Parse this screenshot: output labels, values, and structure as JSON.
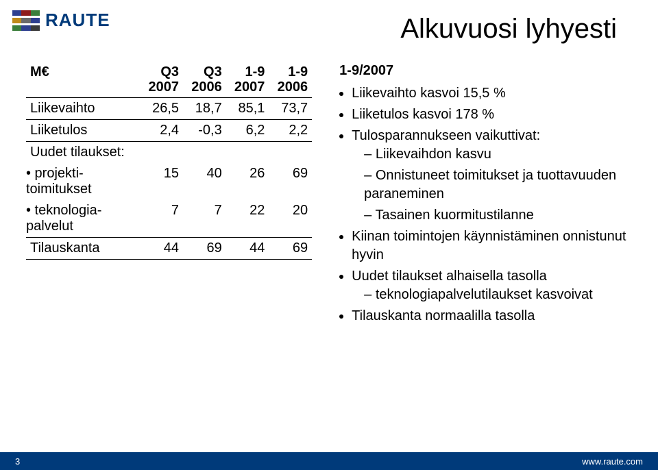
{
  "brand": {
    "name": "RAUTE",
    "logo_colors": [
      "#2e3f8f",
      "#8f1b1b",
      "#3b7e3b",
      "#c08a1a",
      "#6a6a6a",
      "#3a3a3a"
    ]
  },
  "title": "Alkuvuosi lyhyesti",
  "table": {
    "columns": [
      "M€",
      "Q3\n2007",
      "Q3\n2006",
      "1-9\n2007",
      "1-9\n2006"
    ],
    "rows": [
      {
        "label": "Liikevaihto",
        "values": [
          "26,5",
          "18,7",
          "85,1",
          "73,7"
        ]
      },
      {
        "label": "Liiketulos",
        "values": [
          "2,4",
          "-0,3",
          "6,2",
          "2,2"
        ]
      }
    ],
    "group_label": "Uudet tilaukset:",
    "group_rows": [
      {
        "label": "• projekti-\n  toimitukset",
        "values": [
          "15",
          "40",
          "26",
          "69"
        ]
      },
      {
        "label": "• teknologia-\n  palvelut",
        "values": [
          "7",
          "7",
          "22",
          "20"
        ]
      }
    ],
    "last_row": {
      "label": "Tilauskanta",
      "values": [
        "44",
        "69",
        "44",
        "69"
      ]
    }
  },
  "bullets": {
    "lead": "1-9/2007",
    "items": [
      {
        "text": "Liikevaihto kasvoi 15,5 %"
      },
      {
        "text": "Liiketulos kasvoi 178 %"
      },
      {
        "text": "Tulosparannukseen vaikuttivat:",
        "sub": [
          "Liikevaihdon kasvu",
          "Onnistuneet toimitukset ja tuottavuuden paraneminen",
          "Tasainen kuormitustilanne"
        ]
      },
      {
        "text": "Kiinan toimintojen käynnistäminen onnistunut hyvin"
      },
      {
        "text": "Uudet tilaukset alhaisella tasolla",
        "sub": [
          "teknologiapalvelutilaukset kasvoivat"
        ]
      },
      {
        "text": "Tilauskanta normaalilla tasolla"
      }
    ]
  },
  "footer": {
    "page": "3",
    "url": "www.raute.com"
  },
  "palette": {
    "brand_blue": "#003a7a"
  }
}
